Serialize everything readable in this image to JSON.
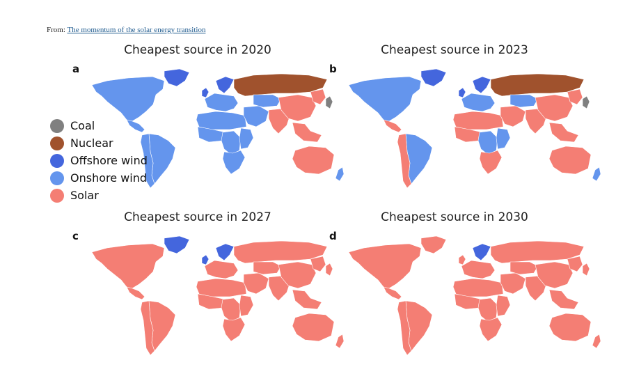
{
  "source": {
    "prefix": "From:",
    "link_text": "The momentum of the solar energy transition"
  },
  "colors": {
    "coal": "#808080",
    "nuclear": "#a0522d",
    "offshore": "#4466dd",
    "onshore": "#6495ed",
    "solar": "#f47e74"
  },
  "legend": [
    {
      "label": "Coal",
      "key": "coal"
    },
    {
      "label": "Nuclear",
      "key": "nuclear"
    },
    {
      "label": "Offshore wind",
      "key": "offshore"
    },
    {
      "label": "Onshore wind",
      "key": "onshore"
    },
    {
      "label": "Solar",
      "key": "solar"
    }
  ],
  "panels": [
    {
      "letter": "a",
      "title": "Cheapest source in 2020",
      "regions": {
        "north_america": "onshore",
        "greenland": "offshore",
        "central_america": "onshore",
        "south_america": "onshore",
        "south_america_west": "onshore",
        "europe": "onshore",
        "uk": "offshore",
        "scandinavia": "offshore",
        "russia": "nuclear",
        "north_africa": "onshore",
        "west_africa": "onshore",
        "central_africa": "onshore",
        "east_africa": "onshore",
        "southern_africa": "onshore",
        "middle_east": "onshore",
        "central_asia": "onshore",
        "south_asia": "solar",
        "china": "solar",
        "east_asia": "solar",
        "japan": "coal",
        "southeast_asia": "solar",
        "australia": "solar",
        "new_zealand": "onshore"
      }
    },
    {
      "letter": "b",
      "title": "Cheapest source in 2023",
      "regions": {
        "north_america": "onshore",
        "greenland": "offshore",
        "central_america": "solar",
        "south_america": "onshore",
        "south_america_west": "solar",
        "europe": "onshore",
        "uk": "offshore",
        "scandinavia": "offshore",
        "russia": "nuclear",
        "north_africa": "solar",
        "west_africa": "solar",
        "central_africa": "onshore",
        "east_africa": "onshore",
        "southern_africa": "solar",
        "middle_east": "solar",
        "central_asia": "onshore",
        "south_asia": "solar",
        "china": "solar",
        "east_asia": "solar",
        "japan": "coal",
        "southeast_asia": "solar",
        "australia": "solar",
        "new_zealand": "onshore"
      }
    },
    {
      "letter": "c",
      "title": "Cheapest source in 2027",
      "regions": {
        "north_america": "solar",
        "greenland": "offshore",
        "central_america": "solar",
        "south_america": "solar",
        "south_america_west": "solar",
        "europe": "solar",
        "uk": "offshore",
        "scandinavia": "offshore",
        "russia": "solar",
        "north_africa": "solar",
        "west_africa": "solar",
        "central_africa": "solar",
        "east_africa": "solar",
        "southern_africa": "solar",
        "middle_east": "solar",
        "central_asia": "solar",
        "south_asia": "solar",
        "china": "solar",
        "east_asia": "solar",
        "japan": "solar",
        "southeast_asia": "solar",
        "australia": "solar",
        "new_zealand": "solar"
      }
    },
    {
      "letter": "d",
      "title": "Cheapest source in 2030",
      "regions": {
        "north_america": "solar",
        "greenland": "solar",
        "central_america": "solar",
        "south_america": "solar",
        "south_america_west": "solar",
        "europe": "solar",
        "uk": "solar",
        "scandinavia": "offshore",
        "russia": "solar",
        "north_africa": "solar",
        "west_africa": "solar",
        "central_africa": "solar",
        "east_africa": "solar",
        "southern_africa": "solar",
        "middle_east": "solar",
        "central_asia": "solar",
        "south_asia": "solar",
        "china": "solar",
        "east_asia": "solar",
        "japan": "solar",
        "southeast_asia": "solar",
        "australia": "solar",
        "new_zealand": "solar"
      }
    }
  ]
}
